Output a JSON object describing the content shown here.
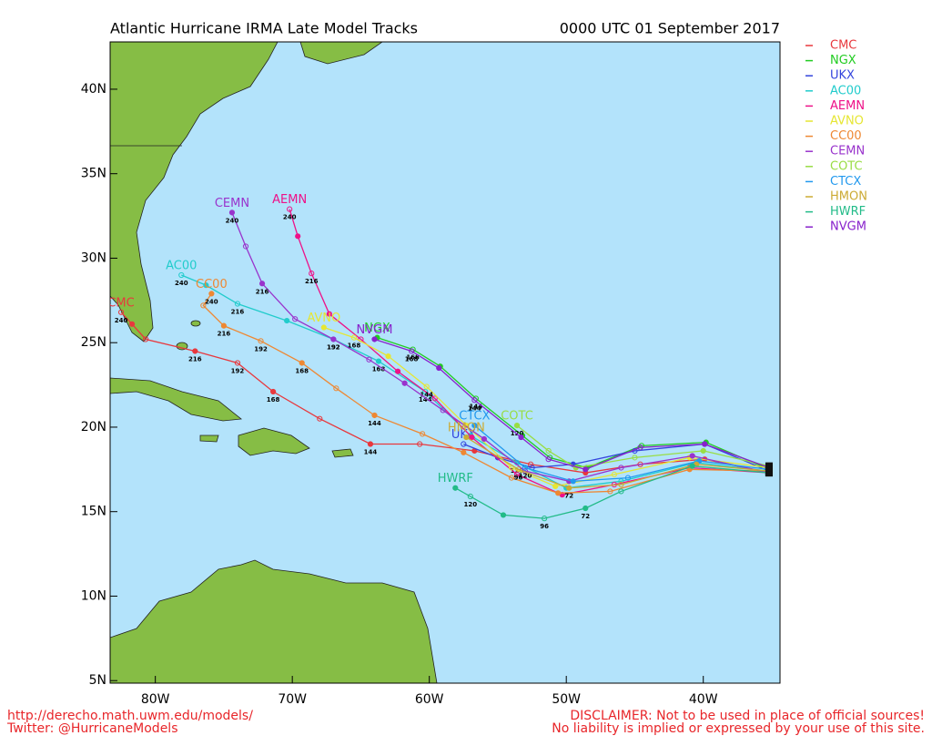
{
  "header": {
    "title": "Atlantic Hurricane IRMA Late Model Tracks",
    "time": "0000 UTC 01 September 2017"
  },
  "map": {
    "lonlim": [
      -83.3,
      -34.4
    ],
    "latlim": [
      4.85,
      42.8
    ],
    "xticks": [
      {
        "value": -80,
        "label": "80W"
      },
      {
        "value": -70,
        "label": "70W"
      },
      {
        "value": -60,
        "label": "60W"
      },
      {
        "value": -50,
        "label": "50W"
      },
      {
        "value": -40,
        "label": "40W"
      }
    ],
    "yticks": [
      {
        "value": 5,
        "label": "5N"
      },
      {
        "value": 10,
        "label": "10N"
      },
      {
        "value": 15,
        "label": "15N"
      },
      {
        "value": 20,
        "label": "20N"
      },
      {
        "value": 25,
        "label": "25N"
      },
      {
        "value": 30,
        "label": "30N"
      },
      {
        "value": 35,
        "label": "35N"
      },
      {
        "value": 40,
        "label": "40N"
      }
    ],
    "tracks": [
      {
        "name": "CMC",
        "color": "#e8383d",
        "points": [
          [
            -35.2,
            17.3
          ],
          [
            -39.9,
            18.1
          ],
          [
            -44.6,
            17.8
          ],
          [
            -48.6,
            17.3
          ],
          [
            -52.6,
            17.8
          ],
          [
            -56.7,
            18.6
          ],
          [
            -60.7,
            19.0
          ],
          [
            -64.3,
            19.0
          ],
          [
            -68.0,
            20.5
          ],
          [
            -71.4,
            22.1
          ],
          [
            -74.0,
            23.8
          ],
          [
            -77.1,
            24.5
          ],
          [
            -80.7,
            25.2
          ],
          [
            -81.7,
            26.1
          ],
          [
            -82.5,
            26.8
          ]
        ],
        "hours": [
          null,
          null,
          null,
          null,
          null,
          null,
          null,
          144,
          null,
          168,
          192,
          216,
          null,
          null,
          240
        ]
      },
      {
        "name": "NGX",
        "color": "#22cc22",
        "points": [
          [
            -35.2,
            17.5
          ],
          [
            -39.8,
            19.1
          ],
          [
            -44.5,
            18.9
          ],
          [
            -48.5,
            17.6
          ],
          [
            -51.2,
            18.2
          ],
          [
            -53.2,
            19.5
          ],
          [
            -56.6,
            21.7
          ],
          [
            -59.2,
            23.6
          ],
          [
            -61.2,
            24.6
          ],
          [
            -63.8,
            25.3
          ]
        ],
        "hours": [
          null,
          null,
          null,
          null,
          null,
          null,
          144,
          null,
          168,
          null
        ]
      },
      {
        "name": "UKX",
        "color": "#3344dd",
        "points": [
          [
            -35.2,
            17.4
          ],
          [
            -39.9,
            19.0
          ],
          [
            -45.0,
            18.6
          ],
          [
            -49.5,
            17.8
          ],
          [
            -52.5,
            17.6
          ],
          [
            -55.0,
            18.2
          ],
          [
            -57.5,
            19.0
          ]
        ],
        "hours": [
          null,
          null,
          null,
          null,
          null,
          null,
          null
        ]
      },
      {
        "name": "AC00",
        "color": "#22cccc",
        "points": [
          [
            -35.2,
            17.4
          ],
          [
            -40.5,
            17.9
          ],
          [
            -46.0,
            16.8
          ],
          [
            -50.0,
            16.4
          ],
          [
            -53.6,
            17.9
          ],
          [
            -57.0,
            19.5
          ],
          [
            -60.3,
            22.1
          ],
          [
            -63.7,
            23.9
          ],
          [
            -67.0,
            25.2
          ],
          [
            -70.4,
            26.3
          ],
          [
            -74.0,
            27.3
          ],
          [
            -76.3,
            28.4
          ],
          [
            -78.1,
            29.0
          ]
        ],
        "hours": [
          null,
          null,
          null,
          null,
          120,
          null,
          144,
          168,
          192,
          null,
          216,
          null,
          240
        ]
      },
      {
        "name": "AEMN",
        "color": "#ee1188",
        "points": [
          [
            -35.2,
            17.3
          ],
          [
            -41.0,
            17.6
          ],
          [
            -46.5,
            16.6
          ],
          [
            -50.3,
            16.0
          ],
          [
            -53.6,
            17.2
          ],
          [
            -56.9,
            19.4
          ],
          [
            -59.6,
            21.7
          ],
          [
            -62.3,
            23.3
          ],
          [
            -65.0,
            25.2
          ],
          [
            -67.3,
            26.7
          ],
          [
            -68.6,
            29.1
          ],
          [
            -69.6,
            31.3
          ],
          [
            -70.2,
            32.9
          ]
        ],
        "hours": [
          null,
          null,
          null,
          null,
          null,
          null,
          null,
          null,
          null,
          null,
          216,
          null,
          240
        ]
      },
      {
        "name": "AVNO",
        "color": "#e6e633",
        "points": [
          [
            -35.2,
            17.6
          ],
          [
            -41.0,
            18.2
          ],
          [
            -46.5,
            17.2
          ],
          [
            -50.8,
            16.5
          ],
          [
            -54.0,
            17.6
          ],
          [
            -57.3,
            20.1
          ],
          [
            -60.2,
            22.4
          ],
          [
            -63.0,
            24.2
          ],
          [
            -65.5,
            25.3
          ],
          [
            -67.7,
            25.9
          ]
        ],
        "hours": [
          null,
          null,
          null,
          null,
          null,
          null,
          144,
          null,
          168,
          null
        ]
      },
      {
        "name": "CC00",
        "color": "#ee8833",
        "points": [
          [
            -35.2,
            17.4
          ],
          [
            -41.0,
            17.5
          ],
          [
            -46.8,
            16.2
          ],
          [
            -50.6,
            16.1
          ],
          [
            -54.0,
            17.0
          ],
          [
            -57.5,
            18.5
          ],
          [
            -60.5,
            19.6
          ],
          [
            -64.0,
            20.7
          ],
          [
            -66.8,
            22.3
          ],
          [
            -69.3,
            23.8
          ],
          [
            -72.3,
            25.1
          ],
          [
            -75.0,
            26.0
          ],
          [
            -76.5,
            27.2
          ],
          [
            -75.9,
            27.9
          ]
        ],
        "hours": [
          null,
          null,
          null,
          null,
          null,
          null,
          null,
          144,
          null,
          168,
          192,
          216,
          null,
          240
        ]
      },
      {
        "name": "CEMN",
        "color": "#9933cc",
        "points": [
          [
            -35.2,
            17.3
          ],
          [
            -40.8,
            18.3
          ],
          [
            -46.0,
            17.6
          ],
          [
            -49.8,
            16.8
          ],
          [
            -53.0,
            17.4
          ],
          [
            -56.0,
            19.3
          ],
          [
            -59.0,
            21.0
          ],
          [
            -61.8,
            22.6
          ],
          [
            -64.4,
            24.0
          ],
          [
            -67.0,
            25.2
          ],
          [
            -69.8,
            26.4
          ],
          [
            -72.2,
            28.5
          ],
          [
            -73.4,
            30.7
          ],
          [
            -74.4,
            32.7
          ]
        ],
        "hours": [
          null,
          null,
          null,
          null,
          null,
          null,
          null,
          null,
          null,
          192,
          null,
          216,
          null,
          240
        ]
      },
      {
        "name": "COTC",
        "color": "#99dd44",
        "points": [
          [
            -35.2,
            17.7
          ],
          [
            -40.0,
            18.6
          ],
          [
            -45.0,
            18.2
          ],
          [
            -49.3,
            17.6
          ],
          [
            -51.3,
            18.6
          ],
          [
            -53.6,
            20.1
          ]
        ],
        "hours": [
          null,
          null,
          null,
          null,
          null,
          120
        ]
      },
      {
        "name": "CTCX",
        "color": "#2299ee",
        "points": [
          [
            -35.2,
            17.5
          ],
          [
            -40.3,
            18.0
          ],
          [
            -45.5,
            17.0
          ],
          [
            -49.5,
            16.8
          ],
          [
            -53.0,
            17.6
          ],
          [
            -56.7,
            20.1
          ]
        ],
        "hours": [
          null,
          null,
          null,
          null,
          120,
          null
        ]
      },
      {
        "name": "HMON",
        "color": "#ccaa33",
        "points": [
          [
            -35.2,
            17.4
          ],
          [
            -40.5,
            17.8
          ],
          [
            -46.0,
            16.6
          ],
          [
            -49.8,
            16.4
          ],
          [
            -53.5,
            17.5
          ],
          [
            -57.3,
            19.4
          ]
        ],
        "hours": [
          null,
          null,
          null,
          72,
          96,
          null
        ]
      },
      {
        "name": "HWRF",
        "color": "#22bb88",
        "points": [
          [
            -35.2,
            17.3
          ],
          [
            -40.8,
            17.7
          ],
          [
            -46.0,
            16.2
          ],
          [
            -48.6,
            15.2
          ],
          [
            -51.6,
            14.6
          ],
          [
            -54.6,
            14.8
          ],
          [
            -57.0,
            15.9
          ],
          [
            -58.1,
            16.4
          ]
        ],
        "hours": [
          null,
          null,
          null,
          72,
          96,
          null,
          120,
          null
        ]
      },
      {
        "name": "NVGM",
        "color": "#8822cc",
        "points": [
          [
            -35.2,
            17.6
          ],
          [
            -39.9,
            19.0
          ],
          [
            -44.6,
            18.8
          ],
          [
            -48.6,
            17.5
          ],
          [
            -51.3,
            18.1
          ],
          [
            -53.3,
            19.4
          ],
          [
            -56.7,
            21.6
          ],
          [
            -59.3,
            23.5
          ],
          [
            -61.3,
            24.5
          ],
          [
            -64.0,
            25.2
          ]
        ],
        "hours": [
          null,
          null,
          null,
          null,
          null,
          null,
          144,
          null,
          168,
          null
        ]
      }
    ]
  },
  "footer": {
    "left": [
      "http://derecho.math.uwm.edu/models/",
      "Twitter: @HurricaneModels"
    ],
    "right": [
      "DISCLAIMER: Not to be used in place of official sources!",
      "No liability is implied or expressed by your use of this site."
    ]
  }
}
